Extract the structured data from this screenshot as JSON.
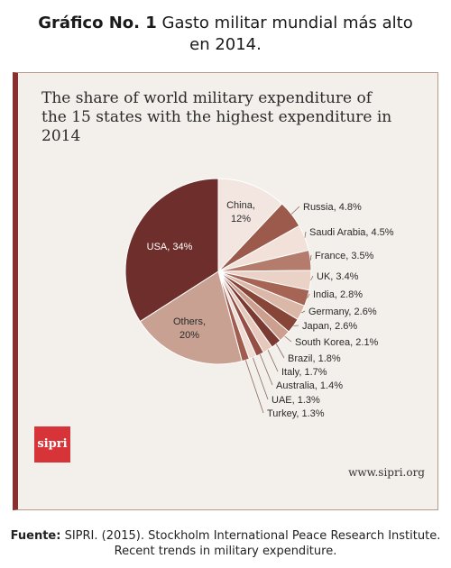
{
  "header": {
    "label": "Gráfico No. 1",
    "title_line1": "Gasto militar mundial más alto",
    "title_line2": "en 2014."
  },
  "footer": {
    "label": "Fuente:",
    "line1": "SIPRI. (2015). Stockholm International Peace Research Institute.",
    "line2": "Recent trends in military expenditure."
  },
  "brand": {
    "logo": "sipri",
    "url": "www.sipri.org"
  },
  "chart_data": {
    "type": "pie",
    "title": "The share of world military expenditure of the 15 states with the highest expenditure in 2014",
    "title_line1": "The share of world military expenditure of",
    "title_line2": "the 15 states with the highest expenditure in 2014",
    "slices": [
      {
        "name": "USA",
        "label": "USA, 34%",
        "value": 34,
        "color": "#6e2f2c"
      },
      {
        "name": "China",
        "label": "China, 12%",
        "value": 12,
        "color": "#f3e6e0"
      },
      {
        "name": "Russia",
        "label": "Russia, 4.8%",
        "value": 4.8,
        "color": "#9b5a4c"
      },
      {
        "name": "Saudi Arabia",
        "label": "Saudi Arabia, 4.5%",
        "value": 4.5,
        "color": "#f1e1d8"
      },
      {
        "name": "France",
        "label": "France, 3.5%",
        "value": 3.5,
        "color": "#b37c6c"
      },
      {
        "name": "UK",
        "label": "UK, 3.4%",
        "value": 3.4,
        "color": "#ead2c7"
      },
      {
        "name": "India",
        "label": "India, 2.8%",
        "value": 2.8,
        "color": "#a56454"
      },
      {
        "name": "Germany",
        "label": "Germany, 2.6%",
        "value": 2.6,
        "color": "#dbb7a8"
      },
      {
        "name": "Japan",
        "label": "Japan, 2.6%",
        "value": 2.6,
        "color": "#874538"
      },
      {
        "name": "South Korea",
        "label": "South Korea, 2.1%",
        "value": 2.1,
        "color": "#cc9f8e"
      },
      {
        "name": "Brazil",
        "label": "Brazil, 1.8%",
        "value": 1.8,
        "color": "#7b3a31"
      },
      {
        "name": "Italy",
        "label": "Italy, 1.7%",
        "value": 1.7,
        "color": "#e6c9bc"
      },
      {
        "name": "Australia",
        "label": "Australia, 1.4%",
        "value": 1.4,
        "color": "#964f44"
      },
      {
        "name": "UAE",
        "label": "UAE, 1.3%",
        "value": 1.3,
        "color": "#efdcd3"
      },
      {
        "name": "Turkey",
        "label": "Turkey, 1.3%",
        "value": 1.3,
        "color": "#a15b4f"
      },
      {
        "name": "Others",
        "label": "Others, 20%",
        "value": 20,
        "color": "#c8a193"
      }
    ]
  }
}
